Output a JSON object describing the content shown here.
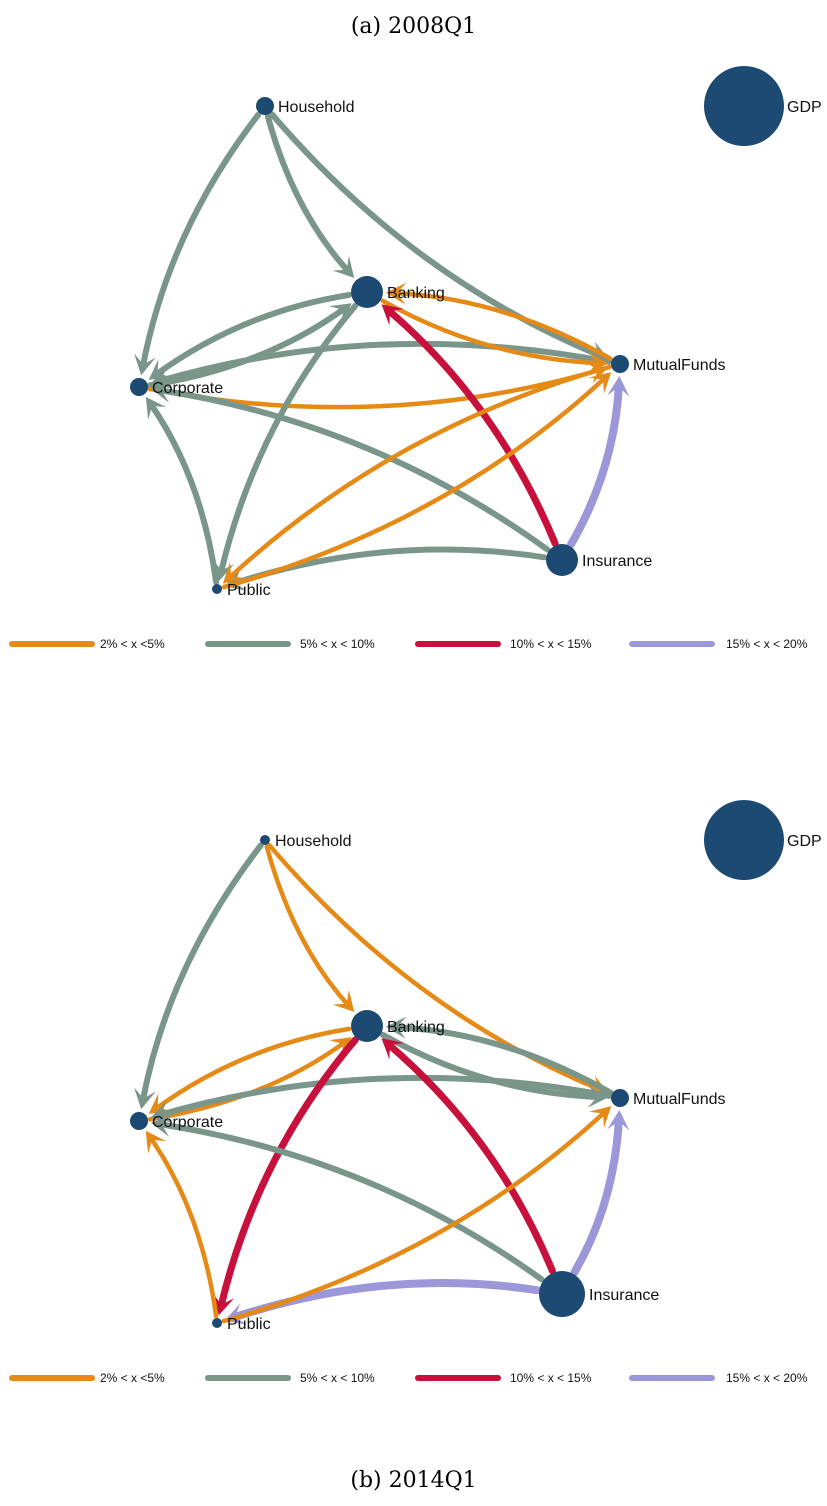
{
  "captions": {
    "a": "(a) 2008Q1",
    "b": "(b) 2014Q1"
  },
  "colors": {
    "node": "#1d4a72",
    "2-5": "#e58a16",
    "5-10": "#7a968b",
    "10-15": "#c8103c",
    "15-20": "#9c97d8"
  },
  "legend": [
    {
      "key": "2-5",
      "label": "2% < x <5%"
    },
    {
      "key": "5-10",
      "label": "5% < x < 10%"
    },
    {
      "key": "10-15",
      "label": "10% < x < 15%"
    },
    {
      "key": "15-20",
      "label": "15% < x < 20%"
    }
  ],
  "panels": [
    {
      "id": "a",
      "gdp_label": "GDP",
      "nodes": [
        {
          "name": "Household",
          "size": "small"
        },
        {
          "name": "Banking",
          "size": "medium"
        },
        {
          "name": "Corporate",
          "size": "small"
        },
        {
          "name": "MutualFunds",
          "size": "small"
        },
        {
          "name": "Insurance",
          "size": "medium"
        },
        {
          "name": "Public",
          "size": "tiny"
        }
      ],
      "edges": [
        {
          "from": "Household",
          "to": "Corporate",
          "band": "5-10"
        },
        {
          "from": "Household",
          "to": "Banking",
          "band": "5-10"
        },
        {
          "from": "Household",
          "to": "MutualFunds",
          "band": "5-10"
        },
        {
          "from": "Corporate",
          "to": "Banking",
          "band": "5-10"
        },
        {
          "from": "Banking",
          "to": "Corporate",
          "band": "5-10"
        },
        {
          "from": "Corporate",
          "to": "MutualFunds",
          "band": "2-5"
        },
        {
          "from": "MutualFunds",
          "to": "Corporate",
          "band": "5-10"
        },
        {
          "from": "Banking",
          "to": "MutualFunds",
          "band": "2-5"
        },
        {
          "from": "MutualFunds",
          "to": "Banking",
          "band": "2-5"
        },
        {
          "from": "Banking",
          "to": "Public",
          "band": "5-10"
        },
        {
          "from": "Insurance",
          "to": "Corporate",
          "band": "5-10"
        },
        {
          "from": "Insurance",
          "to": "Banking",
          "band": "10-15"
        },
        {
          "from": "Insurance",
          "to": "MutualFunds",
          "band": "15-20"
        },
        {
          "from": "Insurance",
          "to": "Public",
          "band": "5-10"
        },
        {
          "from": "Public",
          "to": "Corporate",
          "band": "5-10"
        },
        {
          "from": "Public",
          "to": "MutualFunds",
          "band": "2-5"
        },
        {
          "from": "MutualFunds",
          "to": "Public",
          "band": "2-5"
        }
      ]
    },
    {
      "id": "b",
      "gdp_label": "GDP",
      "nodes": [
        {
          "name": "Household",
          "size": "tiny"
        },
        {
          "name": "Banking",
          "size": "medium"
        },
        {
          "name": "Corporate",
          "size": "small"
        },
        {
          "name": "MutualFunds",
          "size": "small"
        },
        {
          "name": "Insurance",
          "size": "large"
        },
        {
          "name": "Public",
          "size": "tiny"
        }
      ],
      "edges": [
        {
          "from": "Household",
          "to": "Corporate",
          "band": "5-10"
        },
        {
          "from": "Household",
          "to": "Banking",
          "band": "2-5"
        },
        {
          "from": "Household",
          "to": "MutualFunds",
          "band": "2-5"
        },
        {
          "from": "Corporate",
          "to": "Banking",
          "band": "2-5"
        },
        {
          "from": "Banking",
          "to": "Corporate",
          "band": "2-5"
        },
        {
          "from": "MutualFunds",
          "to": "Corporate",
          "band": "5-10"
        },
        {
          "from": "Banking",
          "to": "MutualFunds",
          "band": "5-10"
        },
        {
          "from": "MutualFunds",
          "to": "Banking",
          "band": "5-10"
        },
        {
          "from": "Banking",
          "to": "Public",
          "band": "10-15"
        },
        {
          "from": "Insurance",
          "to": "Banking",
          "band": "10-15"
        },
        {
          "from": "Insurance",
          "to": "Corporate",
          "band": "5-10"
        },
        {
          "from": "Insurance",
          "to": "MutualFunds",
          "band": "15-20"
        },
        {
          "from": "Insurance",
          "to": "Public",
          "band": "15-20"
        },
        {
          "from": "Public",
          "to": "Corporate",
          "band": "2-5"
        },
        {
          "from": "Public",
          "to": "MutualFunds",
          "band": "2-5"
        }
      ]
    }
  ]
}
